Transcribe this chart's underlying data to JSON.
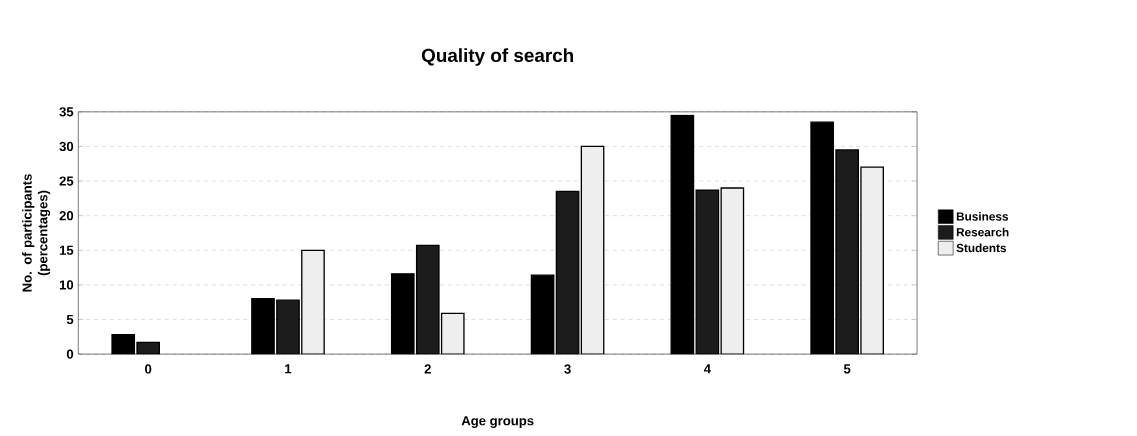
{
  "chart_data": {
    "type": "bar",
    "title": "Quality of search",
    "xlabel": "Age groups",
    "ylabel": "No. of participants (percentages)",
    "categories": [
      "0",
      "1",
      "2",
      "3",
      "4",
      "5"
    ],
    "series": [
      {
        "name": "Business",
        "color": "#000000",
        "values": [
          2.8,
          8,
          11.6,
          11.4,
          34.5,
          33.5
        ]
      },
      {
        "name": "Research",
        "color": "#1c1c1c",
        "values": [
          1.7,
          7.8,
          15.7,
          23.5,
          23.7,
          29.5
        ]
      },
      {
        "name": "Students",
        "color": "#eeeeee",
        "values": [
          null,
          15,
          5.9,
          30,
          24,
          27
        ]
      }
    ],
    "ylim": [
      0,
      35
    ],
    "yticks": [
      0,
      5,
      10,
      15,
      20,
      25,
      30,
      35
    ],
    "grid": "y",
    "legend": "right"
  }
}
